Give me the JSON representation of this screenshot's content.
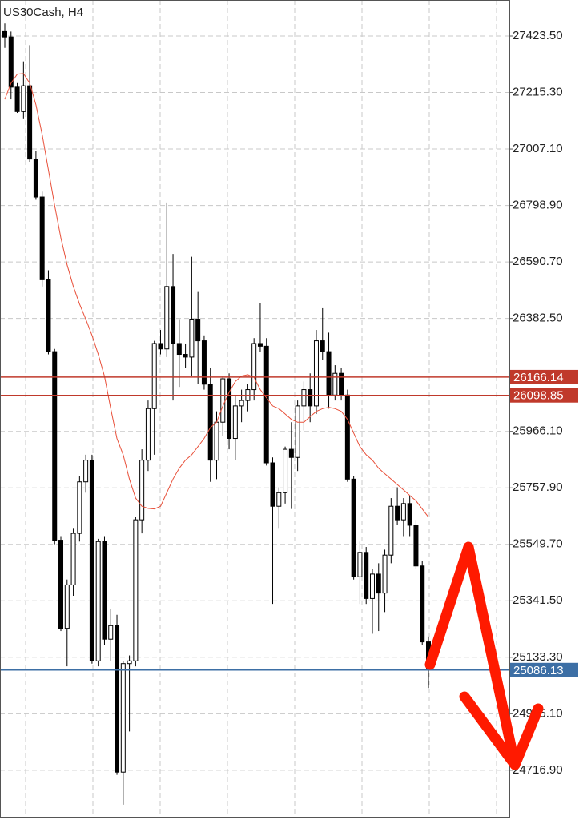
{
  "chart_data": {
    "type": "candlestick",
    "title": "US30Cash, H4",
    "open": [
      27440,
      27420,
      27235,
      27145,
      27240,
      26970,
      26830,
      26525,
      26260,
      25565,
      25240,
      25400,
      25590,
      25780,
      25860,
      25120,
      25560,
      25200,
      25250,
      24710,
      25110,
      25120,
      25640,
      25860,
      26050,
      26290,
      26270,
      26500,
      26290,
      26250,
      26240,
      26380,
      26300,
      26140,
      25860,
      26000,
      26160,
      25940,
      26060,
      26080,
      26120,
      26290,
      26280,
      25850,
      25690,
      25740,
      25900,
      25870,
      26060,
      26120,
      26060,
      26300,
      26260,
      26100,
      26180,
      26100,
      25790,
      25430,
      25520,
      25350,
      25440,
      25370,
      25510,
      25690,
      25640,
      25700,
      25620,
      25470,
      25190
    ],
    "high": [
      27470,
      27440,
      27250,
      27330,
      27390,
      27000,
      26850,
      26560,
      26270,
      25580,
      25420,
      25610,
      25800,
      25880,
      25880,
      25570,
      25580,
      25310,
      25290,
      25120,
      25140,
      25650,
      25900,
      26080,
      26300,
      26340,
      26810,
      26620,
      26380,
      26290,
      26610,
      26480,
      26320,
      26200,
      26040,
      26170,
      26180,
      26100,
      26120,
      26140,
      26310,
      26440,
      26310,
      25870,
      25760,
      25910,
      26000,
      26080,
      26150,
      26180,
      26340,
      26420,
      26330,
      26210,
      26200,
      26120,
      25800,
      25560,
      25540,
      25460,
      25480,
      25530,
      25720,
      25760,
      25720,
      25730,
      25640,
      25490,
      25210
    ],
    "low": [
      27380,
      27190,
      27140,
      27120,
      26960,
      26820,
      26500,
      26250,
      25550,
      25230,
      25100,
      25360,
      25560,
      25740,
      25110,
      25100,
      25180,
      25120,
      24700,
      24590,
      24860,
      25100,
      25590,
      25820,
      25880,
      26250,
      26240,
      26080,
      26130,
      26200,
      26170,
      26140,
      26120,
      25780,
      25790,
      25950,
      25900,
      25860,
      26000,
      26040,
      26080,
      26260,
      25840,
      25330,
      25610,
      25700,
      25680,
      25820,
      25970,
      26000,
      26030,
      26230,
      26050,
      26080,
      26080,
      25780,
      25420,
      25330,
      25330,
      25220,
      25230,
      25300,
      25480,
      25620,
      25580,
      25580,
      25460,
      25180,
      25020
    ],
    "close": [
      27420,
      27235,
      27145,
      27240,
      26970,
      26830,
      26525,
      26260,
      25565,
      25240,
      25400,
      25590,
      25780,
      25860,
      25120,
      25560,
      25200,
      25250,
      24710,
      25110,
      25120,
      25640,
      25860,
      26050,
      26290,
      26270,
      26500,
      26290,
      26250,
      26240,
      26380,
      26300,
      26140,
      25860,
      26000,
      26160,
      25940,
      26060,
      26080,
      26120,
      26290,
      26280,
      25850,
      25690,
      25740,
      25900,
      25870,
      26060,
      26120,
      26060,
      26300,
      26260,
      26100,
      26180,
      26100,
      25790,
      25430,
      25520,
      25350,
      25440,
      25370,
      25510,
      25690,
      25640,
      25700,
      25620,
      25470,
      25190,
      25090
    ],
    "ma": {
      "color": "#e8503a",
      "values": [
        27190,
        27250,
        27283,
        27285,
        27250,
        27170,
        27060,
        26930,
        26800,
        26680,
        26580,
        26500,
        26435,
        26380,
        26320,
        26250,
        26169,
        26050,
        25940,
        25880,
        25790,
        25720,
        25690,
        25682,
        25680,
        25690,
        25740,
        25790,
        25830,
        25860,
        25880,
        25910,
        25940,
        25980,
        26000,
        26060,
        26110,
        26150,
        26170,
        26175,
        26165,
        26120,
        26090,
        26060,
        26050,
        26030,
        26010,
        26000,
        26000,
        26020,
        26040,
        26050,
        26055,
        26050,
        26040,
        26010,
        25960,
        25910,
        25880,
        25860,
        25830,
        25810,
        25790,
        25770,
        25750,
        25730,
        25710,
        25680,
        25650
      ]
    },
    "up_color": "#ffffff",
    "down_color": "#000000",
    "ylim": [
      24545.3,
      27556.3
    ],
    "yticks": [
      {
        "value": 27423.5,
        "label": "27423.50"
      },
      {
        "value": 27215.3,
        "label": "27215.30"
      },
      {
        "value": 27007.1,
        "label": "27007.10"
      },
      {
        "value": 26798.9,
        "label": "26798.90"
      },
      {
        "value": 26590.7,
        "label": "26590.70"
      },
      {
        "value": 26382.5,
        "label": "26382.50"
      },
      {
        "value": 25966.1,
        "label": "25966.10"
      },
      {
        "value": 25757.9,
        "label": "25757.90"
      },
      {
        "value": 25549.7,
        "label": "25549.70"
      },
      {
        "value": 25341.5,
        "label": "25341.50"
      },
      {
        "value": 25133.3,
        "label": "25133.30"
      },
      {
        "value": 24925.1,
        "label": "24925.10"
      },
      {
        "value": 24716.9,
        "label": "24716.90"
      }
    ],
    "grid": true,
    "hlines": [
      {
        "value": 26166.14,
        "color": "#c0392b"
      },
      {
        "value": 26098.85,
        "color": "#c0392b"
      },
      {
        "value": 25086.13,
        "color": "#3d6fa5"
      }
    ]
  }
}
